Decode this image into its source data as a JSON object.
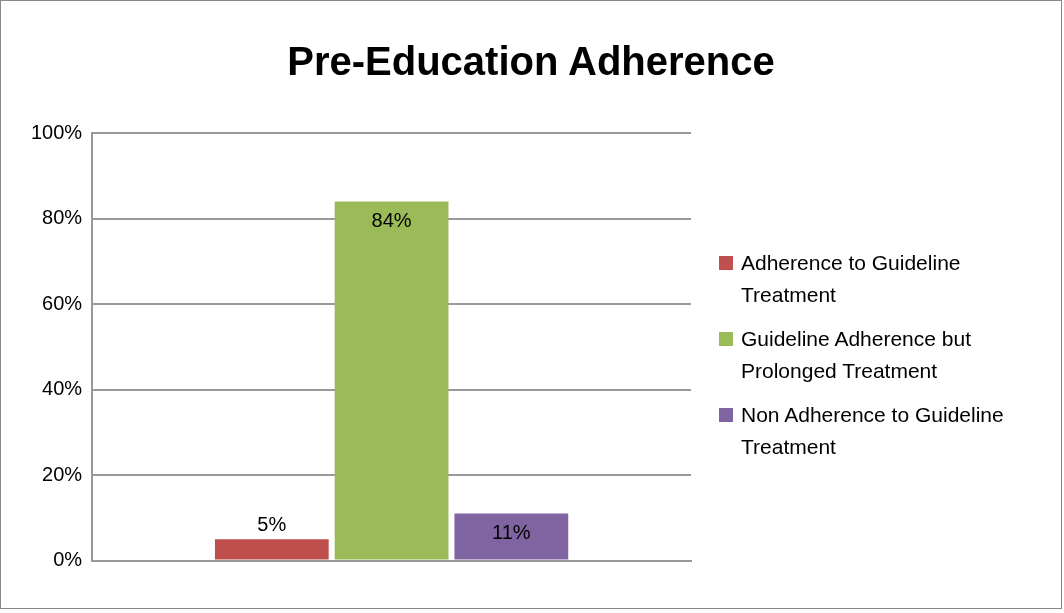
{
  "chart_data": {
    "type": "bar",
    "title": "Pre-Education Adherence",
    "categories": [
      null
    ],
    "series": [
      {
        "name": "Adherence to Guideline Treatment",
        "color": "#c0504d",
        "values": [
          5
        ],
        "value_labels": [
          "5%"
        ]
      },
      {
        "name": "Guideline Adherence but Prolonged Treatment",
        "color": "#9bbb59",
        "values": [
          84
        ],
        "value_labels": [
          "84%"
        ]
      },
      {
        "name": "Non Adherence to Guideline Treatment",
        "color": "#8064a2",
        "values": [
          11
        ],
        "value_labels": [
          "11%"
        ]
      }
    ],
    "ylim": [
      0,
      100
    ],
    "yticks": [
      {
        "value": 0,
        "label": "0%"
      },
      {
        "value": 20,
        "label": "20%"
      },
      {
        "value": 40,
        "label": "40%"
      },
      {
        "value": 60,
        "label": "60%"
      },
      {
        "value": 80,
        "label": "80%"
      },
      {
        "value": 100,
        "label": "100%"
      }
    ],
    "grid": "y",
    "legend": "right"
  }
}
